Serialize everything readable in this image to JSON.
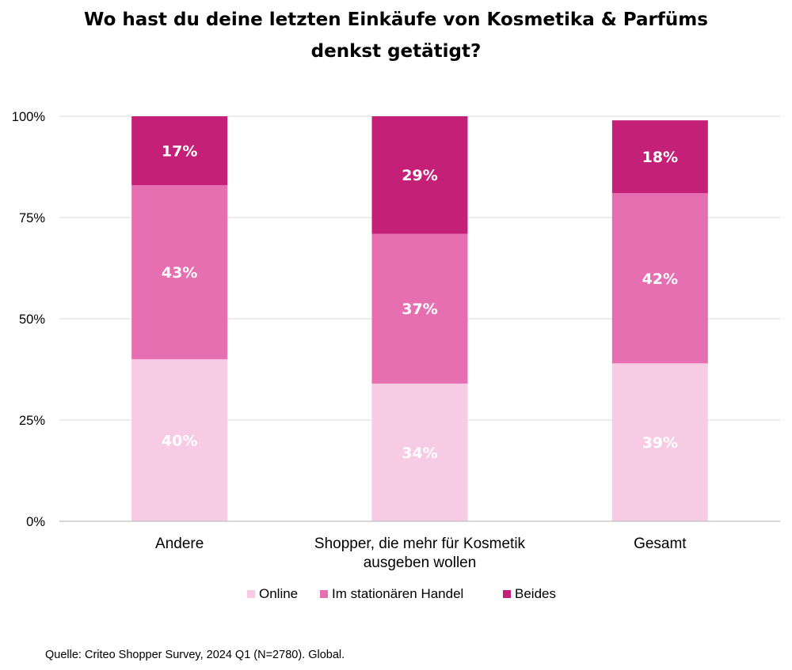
{
  "chart_data": {
    "type": "bar",
    "stacked": true,
    "title_lines": [
      "Wo hast du deine letzten Einkäufe von Kosmetika & Parfüms",
      "denkst getätigt?"
    ],
    "categories": [
      [
        "Andere"
      ],
      [
        "Shopper, die mehr für Kosmetik",
        "ausgeben wollen"
      ],
      [
        "Gesamt"
      ]
    ],
    "series": [
      {
        "name": "Online",
        "color": "#f6cbe3",
        "label_color": "#ffffff",
        "values": [
          40,
          34,
          39
        ]
      },
      {
        "name": "Im stationären Handel",
        "color": "#e66fb2",
        "label_color": "#ffffff",
        "values": [
          43,
          37,
          42
        ]
      },
      {
        "name": "Beides",
        "color": "#c42078",
        "label_color": "#ffffff",
        "values": [
          17,
          29,
          18
        ]
      }
    ],
    "value_suffix": "%",
    "ylim": [
      0,
      100
    ],
    "yticks": [
      0,
      25,
      50,
      75,
      100
    ],
    "ytick_suffix": "%",
    "grid": true,
    "legend_position": "bottom",
    "xlabel": "",
    "ylabel": ""
  },
  "source_note": "Quelle: Criteo Shopper Survey, 2024 Q1 (N=2780). Global."
}
